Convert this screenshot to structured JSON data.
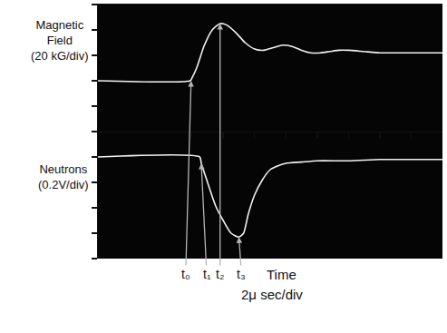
{
  "chart_data": {
    "type": "line",
    "xlabel": "Time",
    "xlabel_note": "2μ sec/div",
    "xlim": [
      0,
      22
    ],
    "xticks": [
      6,
      8,
      10,
      12,
      14,
      16,
      18,
      20
    ],
    "ylim": [
      -40,
      60
    ],
    "yticks": [
      -40,
      -20,
      0,
      20,
      40,
      60
    ],
    "y2lim": [
      -0.8,
      0.2
    ],
    "y2ticks": [
      -0.8,
      -0.6,
      -0.4,
      -0.2,
      0,
      0.2
    ],
    "tick_labels": false,
    "grid": false,
    "series": [
      {
        "name": "Magnetic Field (20 kG/div)",
        "color": "#f2f2f2",
        "line_style": "solid",
        "x": [
          0,
          5.9,
          6.0,
          6.3,
          6.8,
          7.3,
          7.8,
          8.2,
          8.8,
          9.4,
          10,
          10.6,
          11.2,
          11.8,
          12.4,
          13,
          13.6,
          14.2,
          14.8,
          15.4,
          16,
          17,
          18,
          19,
          20,
          22
        ],
        "values": [
          0,
          0,
          2,
          10,
          28,
          40,
          45,
          44,
          38,
          30,
          25,
          24,
          26,
          28,
          27,
          24,
          22,
          22,
          23,
          24,
          24,
          23,
          22,
          22,
          22,
          22
        ]
      },
      {
        "name": "Neutrons (0.2V/div)",
        "axis": "y2",
        "color": "#f2f2f2",
        "line_style": "solid",
        "x": [
          0,
          6.5,
          6.6,
          7,
          7.5,
          8,
          8.5,
          9,
          9.3,
          9.6,
          10,
          10.5,
          11,
          11.5,
          12,
          13,
          14,
          16,
          18,
          20,
          22
        ],
        "values": [
          0,
          0,
          -0.05,
          -0.2,
          -0.38,
          -0.5,
          -0.6,
          -0.63,
          -0.6,
          -0.45,
          -0.3,
          -0.18,
          -0.1,
          -0.07,
          -0.05,
          -0.04,
          -0.03,
          -0.03,
          -0.02,
          -0.02,
          -0.02
        ]
      }
    ],
    "annotations": [
      {
        "text": "t₀",
        "x": 5.95,
        "y": 0,
        "axis": "y"
      },
      {
        "text": "t₁",
        "x": 6.6,
        "y": -0.05,
        "axis": "y2"
      },
      {
        "text": "t₂",
        "x": 7.8,
        "y": 45,
        "axis": "y"
      },
      {
        "text": "t₃",
        "x": 9.0,
        "y": -0.63,
        "axis": "y2"
      }
    ]
  }
}
